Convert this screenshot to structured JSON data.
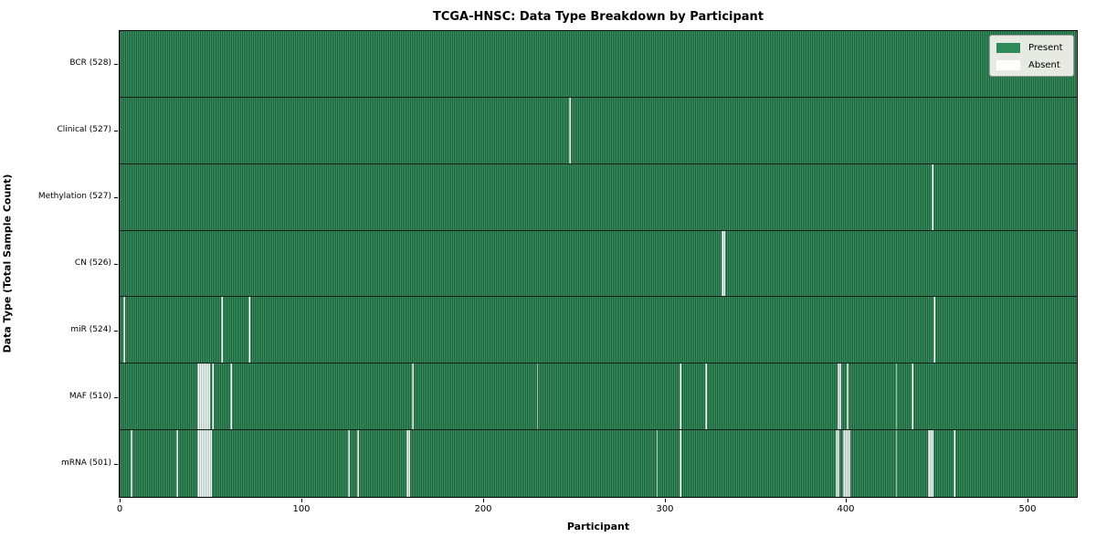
{
  "title": "TCGA-HNSC: Data Type Breakdown by Participant",
  "xlabel": "Participant",
  "ylabel": "Data Type (Total Sample Count)",
  "legend": {
    "present_label": "Present",
    "absent_label": "Absent"
  },
  "colors": {
    "present": "#2e8b57",
    "present_stripe_dark": "#1e5e3c",
    "present_stripe_light": "#37945f",
    "absent": "#ffffff",
    "legend_bg": "#e6eae3",
    "legend_border": "#9a9a9a",
    "row_divider": "#000000"
  },
  "chart_data": {
    "type": "heatmap",
    "n_participants": 528,
    "x_ticks": [
      0,
      100,
      200,
      300,
      400,
      500
    ],
    "xlabel": "Participant",
    "ylabel": "Data Type (Total Sample Count)",
    "title": "TCGA-HNSC: Data Type Breakdown by Participant",
    "legend_position": "upper right",
    "value_labels": [
      "Present",
      "Absent"
    ],
    "rows": [
      {
        "label": "BCR (528)",
        "total": 528,
        "absent_participants": []
      },
      {
        "label": "Clinical (527)",
        "total": 527,
        "absent_participants": [
          248
        ]
      },
      {
        "label": "Methylation (527)",
        "total": 527,
        "absent_participants": [
          448
        ]
      },
      {
        "label": "CN (526)",
        "total": 526,
        "absent_participants": [
          332,
          333
        ]
      },
      {
        "label": "miR (524)",
        "total": 524,
        "absent_participants": [
          2,
          56,
          71,
          449
        ]
      },
      {
        "label": "MAF (510)",
        "total": 510,
        "absent_participants": [
          43,
          44,
          45,
          46,
          47,
          48,
          49,
          51,
          61,
          161,
          230,
          309,
          323,
          396,
          397,
          401,
          428,
          437
        ]
      },
      {
        "label": "mRNA (501)",
        "total": 501,
        "absent_participants": [
          6,
          31,
          43,
          44,
          45,
          46,
          47,
          48,
          49,
          50,
          126,
          131,
          158,
          159,
          296,
          309,
          395,
          396,
          399,
          400,
          401,
          402,
          428,
          446,
          447,
          448,
          460
        ]
      }
    ]
  }
}
